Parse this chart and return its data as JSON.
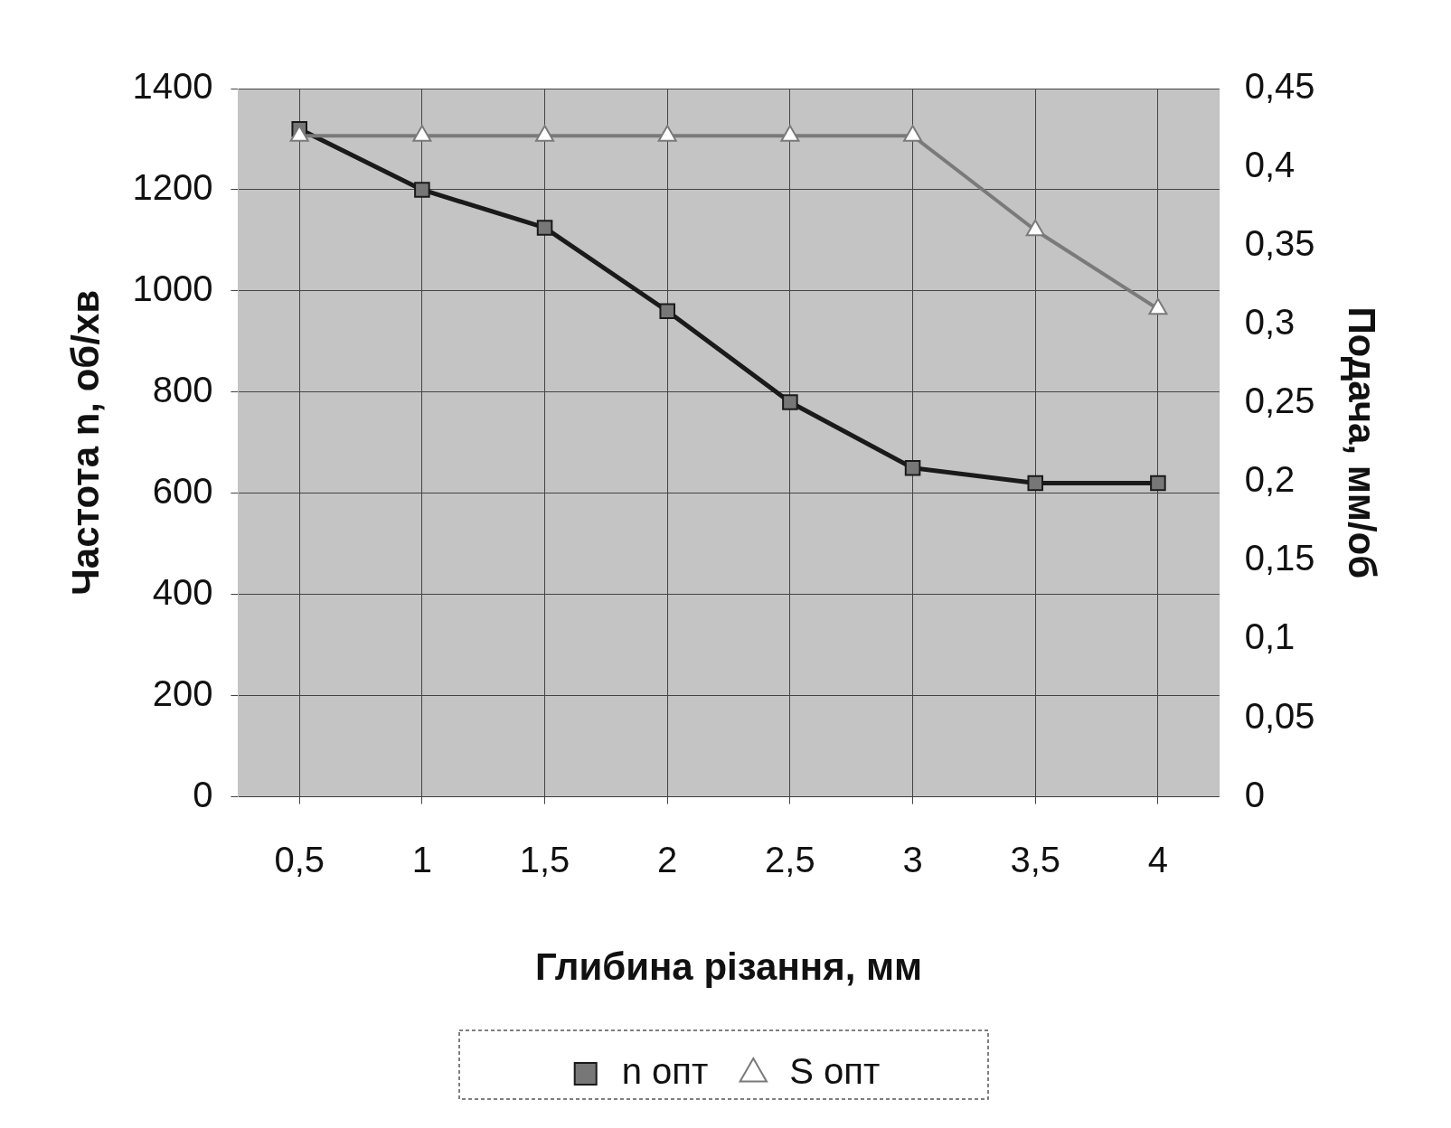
{
  "chart_data": {
    "type": "line",
    "xlabel": "Глибина різання, мм",
    "ylabel": "Частота n, об/хв",
    "y2label": "Подача, мм/об",
    "categories": [
      "0,5",
      "1",
      "1,5",
      "2",
      "2,5",
      "3",
      "3,5",
      "4"
    ],
    "series": [
      {
        "name": "n опт",
        "color": "#1a1a1a",
        "marker": "square",
        "values": [
          1320,
          1200,
          1125,
          960,
          780,
          650,
          620,
          620
        ]
      },
      {
        "name": "S опт",
        "color": "#7a7a7a",
        "marker": "triangle",
        "axis": "y2",
        "values": [
          0.42,
          0.42,
          0.42,
          0.42,
          0.42,
          0.42,
          0.36,
          0.31
        ]
      }
    ],
    "ylim": [
      0,
      1400
    ],
    "yticks": [
      0,
      200,
      400,
      600,
      800,
      1000,
      1200,
      1400
    ],
    "y2lim": [
      0,
      0.45
    ],
    "y2ticks": [
      {
        "value": 0,
        "label": "0"
      },
      {
        "value": 0.05,
        "label": "0,05"
      },
      {
        "value": 0.1,
        "label": "0,1"
      },
      {
        "value": 0.15,
        "label": "0,15"
      },
      {
        "value": 0.2,
        "label": "0,2"
      },
      {
        "value": 0.25,
        "label": "0,25"
      },
      {
        "value": 0.3,
        "label": "0,3"
      },
      {
        "value": 0.35,
        "label": "0,35"
      },
      {
        "value": 0.4,
        "label": "0,4"
      },
      {
        "value": 0.45,
        "label": "0,45"
      }
    ],
    "grid": true,
    "legend": "bottom",
    "line_style": "solid"
  }
}
